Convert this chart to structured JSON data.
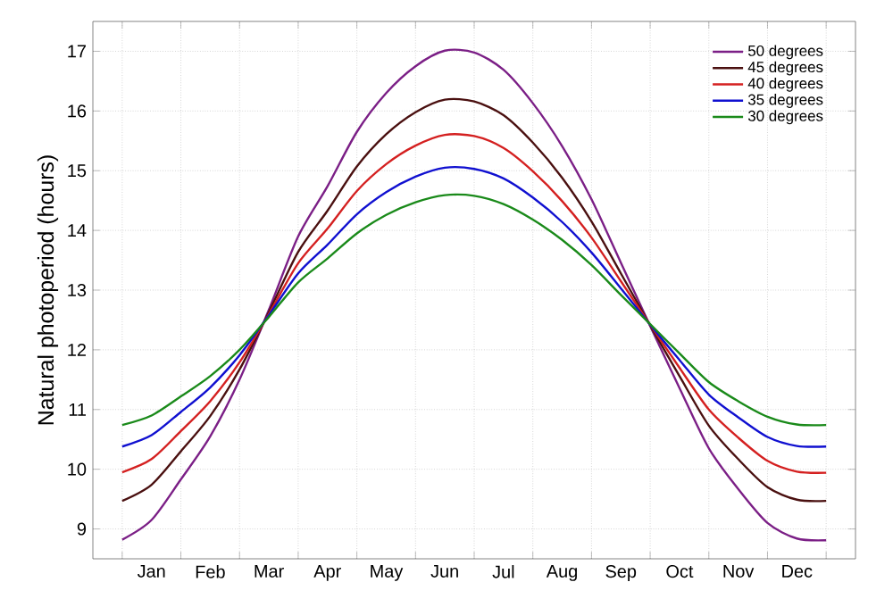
{
  "chart_data": {
    "type": "line",
    "ylabel": "Natural photoperiod (hours)",
    "categories": [
      null,
      "Jan",
      null,
      "Feb",
      null,
      "Mar",
      null,
      "Apr",
      null,
      "May",
      null,
      "Jun",
      null,
      "Jul",
      null,
      "Aug",
      null,
      "Sep",
      null,
      "Oct",
      null,
      "Nov",
      null,
      "Dec",
      null
    ],
    "series": [
      {
        "name": "50 degrees",
        "color": "#7b1f86",
        "values": [
          8.82,
          9.15,
          9.83,
          10.55,
          11.5,
          12.67,
          13.9,
          14.74,
          15.65,
          16.3,
          16.75,
          17.01,
          16.98,
          16.69,
          16.13,
          15.41,
          14.52,
          13.46,
          12.4,
          11.36,
          10.35,
          9.67,
          9.1,
          8.84,
          8.81
        ]
      },
      {
        "name": "45 degrees",
        "color": "#4a1010",
        "values": [
          9.47,
          9.74,
          10.3,
          10.89,
          11.67,
          12.63,
          13.64,
          14.33,
          15.07,
          15.61,
          15.98,
          16.19,
          16.16,
          15.93,
          15.47,
          14.88,
          14.15,
          13.28,
          12.41,
          11.56,
          10.73,
          10.17,
          9.7,
          9.49,
          9.47
        ]
      },
      {
        "name": "40 degrees",
        "color": "#d42020",
        "values": [
          9.95,
          10.17,
          10.64,
          11.14,
          11.79,
          12.6,
          13.45,
          14.03,
          14.66,
          15.11,
          15.42,
          15.6,
          15.58,
          15.38,
          14.99,
          14.49,
          13.88,
          13.15,
          12.42,
          11.7,
          11.0,
          10.53,
          10.14,
          9.96,
          9.94
        ]
      },
      {
        "name": "35 degrees",
        "color": "#1010d0",
        "values": [
          10.38,
          10.57,
          10.96,
          11.37,
          11.91,
          12.58,
          13.28,
          13.76,
          14.27,
          14.64,
          14.9,
          15.05,
          15.03,
          14.87,
          14.55,
          14.14,
          13.63,
          13.03,
          12.42,
          11.83,
          11.25,
          10.87,
          10.54,
          10.39,
          10.38
        ]
      },
      {
        "name": "30 degrees",
        "color": "#1a8a1a",
        "values": [
          10.74,
          10.9,
          11.22,
          11.56,
          12.0,
          12.55,
          13.13,
          13.53,
          13.95,
          14.26,
          14.47,
          14.59,
          14.58,
          14.44,
          14.18,
          13.84,
          13.42,
          12.92,
          12.43,
          11.94,
          11.46,
          11.14,
          10.88,
          10.75,
          10.74
        ]
      }
    ],
    "ylim": [
      8.5,
      17.5
    ],
    "yticks": [
      9,
      10,
      11,
      12,
      13,
      14,
      15,
      16,
      17
    ],
    "grid": true,
    "legend": "top right",
    "marker": "none",
    "line_style": "solid"
  }
}
